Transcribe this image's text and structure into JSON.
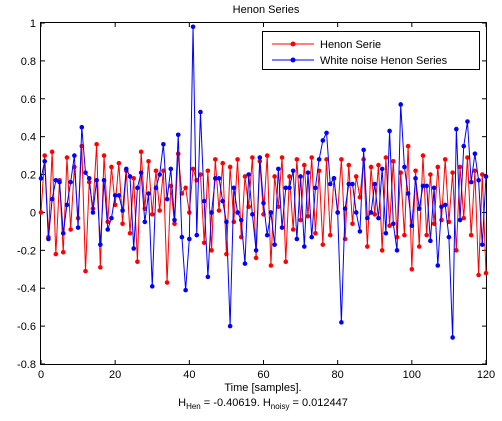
{
  "chart_data": {
    "type": "line",
    "title": "Henon Series",
    "xlabel": "Time [samples].",
    "ylabel": "",
    "xlim": [
      0,
      120
    ],
    "ylim": [
      -0.8,
      1
    ],
    "xticks": [
      0,
      20,
      40,
      60,
      80,
      100,
      120
    ],
    "yticks": [
      -0.8,
      -0.6,
      -0.4,
      -0.2,
      0,
      0.2,
      0.4,
      0.6,
      0.8,
      1
    ],
    "ytick_labels": [
      "-0.8",
      "-0.6",
      "-0.4",
      "-0.2",
      "0",
      "0.2",
      "0.4",
      "0.6",
      "0.8",
      "1"
    ],
    "grid": false,
    "legend_position": "top-right",
    "annotation": {
      "parts": [
        {
          "text": "H",
          "role": "base"
        },
        {
          "text": "Hen",
          "role": "sub"
        },
        {
          "text": " = -0.40619. H",
          "role": "base"
        },
        {
          "text": "noisy",
          "role": "sub"
        },
        {
          "text": " = 0.012447",
          "role": "base"
        }
      ]
    },
    "series": [
      {
        "name": "Henon Serie",
        "color": "#ff0000",
        "marker": "circle",
        "values": [
          0.0,
          0.3,
          -0.13,
          0.32,
          -0.22,
          0.17,
          -0.21,
          0.29,
          -0.09,
          0.24,
          -0.03,
          0.35,
          -0.31,
          0.16,
          0.02,
          0.36,
          -0.29,
          0.3,
          -0.05,
          0.24,
          0.04,
          0.26,
          -0.06,
          0.22,
          -0.11,
          0.18,
          -0.26,
          0.32,
          0.02,
          0.27,
          -0.01,
          0.22,
          0.01,
          0.22,
          -0.37,
          0.14,
          -0.06,
          0.31,
          0.1,
          0.13,
          0.0,
          0.23,
          0.17,
          0.2,
          -0.16,
          0.22,
          -0.2,
          0.28,
          0.01,
          0.26,
          -0.22,
          0.24,
          -0.05,
          0.28,
          -0.13,
          0.19,
          0.03,
          0.29,
          -0.24,
          0.27,
          -0.01,
          0.3,
          -0.28,
          0.19,
          0.03,
          0.29,
          -0.26,
          0.19,
          -0.09,
          0.28,
          -0.04,
          0.25,
          -0.02,
          0.29,
          -0.11,
          0.22,
          -0.17,
          0.28,
          -0.12,
          0.18,
          0.0,
          0.28,
          -0.14,
          0.25,
          -0.06,
          0.19,
          0.08,
          0.28,
          -0.18,
          0.24,
          -0.01,
          0.25,
          -0.2,
          0.29,
          -0.07,
          0.27,
          -0.13,
          0.21,
          -0.12,
          0.35,
          -0.3,
          0.22,
          -0.18,
          0.3,
          -0.12,
          0.2,
          -0.06,
          0.24,
          -0.04,
          0.28,
          -0.05,
          0.21,
          -0.2,
          0.24,
          -0.03,
          0.29,
          -0.12,
          0.22,
          -0.33,
          0.2,
          -0.32
        ]
      },
      {
        "name": "White noise Henon Series",
        "color": "#0000ff",
        "marker": "circle",
        "values": [
          0.18,
          0.27,
          -0.14,
          0.07,
          0.17,
          0.16,
          -0.11,
          0.04,
          0.16,
          0.3,
          -0.08,
          0.45,
          0.21,
          0.18,
          0.0,
          0.17,
          -0.17,
          0.17,
          -0.09,
          -0.03,
          0.09,
          0.09,
          0.01,
          0.23,
          0.19,
          -0.19,
          0.13,
          0.21,
          -0.05,
          0.1,
          -0.39,
          0.13,
          0.2,
          0.36,
          0.07,
          0.23,
          -0.04,
          0.41,
          -0.13,
          -0.41,
          -0.14,
          0.98,
          -0.12,
          0.53,
          0.06,
          -0.34,
          0.0,
          0.18,
          0.18,
          0.06,
          -0.05,
          -0.6,
          0.13,
          0.0,
          -0.04,
          -0.27,
          0.2,
          -0.01,
          -0.2,
          0.29,
          0.05,
          -0.12,
          0.0,
          -0.17,
          0.23,
          -0.08,
          0.13,
          0.13,
          0.22,
          -0.14,
          0.19,
          -0.18,
          0.21,
          -0.13,
          0.13,
          0.28,
          0.38,
          0.42,
          0.15,
          0.18,
          0.0,
          -0.58,
          0.02,
          0.15,
          0.15,
          0.0,
          -0.1,
          0.33,
          -0.03,
          0.0,
          0.15,
          -0.03,
          0.23,
          -0.11,
          0.43,
          -0.06,
          -0.2,
          0.57,
          0.24,
          0.1,
          -0.07,
          0.18,
          0.02,
          0.14,
          0.14,
          -0.15,
          0.13,
          -0.28,
          0.03,
          0.04,
          -0.13,
          -0.66,
          0.44,
          -0.04,
          0.35,
          0.48,
          0.16,
          0.31,
          0.17,
          -0.17,
          0.19
        ]
      }
    ]
  }
}
